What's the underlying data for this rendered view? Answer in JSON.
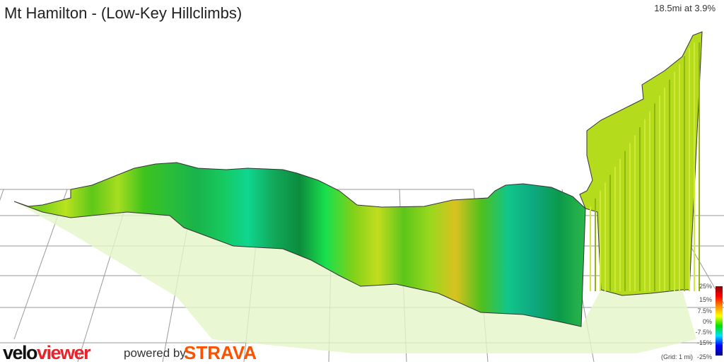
{
  "title": "Mt Hamilton - (Low-Key Hillclimbs)",
  "summary": "18.5mi at 3.9%",
  "legend": {
    "labels": [
      "25%",
      "15%",
      "7.5%",
      "0%",
      "-7.5%",
      "-15%",
      "-25%"
    ],
    "grid_note": "(Grid: 1 mi)",
    "colors": [
      "#8b0000",
      "#ff0000",
      "#ff8c00",
      "#ffff00",
      "#00e000",
      "#00e0ff",
      "#0000ff",
      "#00008b"
    ]
  },
  "branding": {
    "logo_part1": "velo",
    "logo_part2": "viewer",
    "powered_by": "powered by",
    "strava": "STRAVA"
  }
}
